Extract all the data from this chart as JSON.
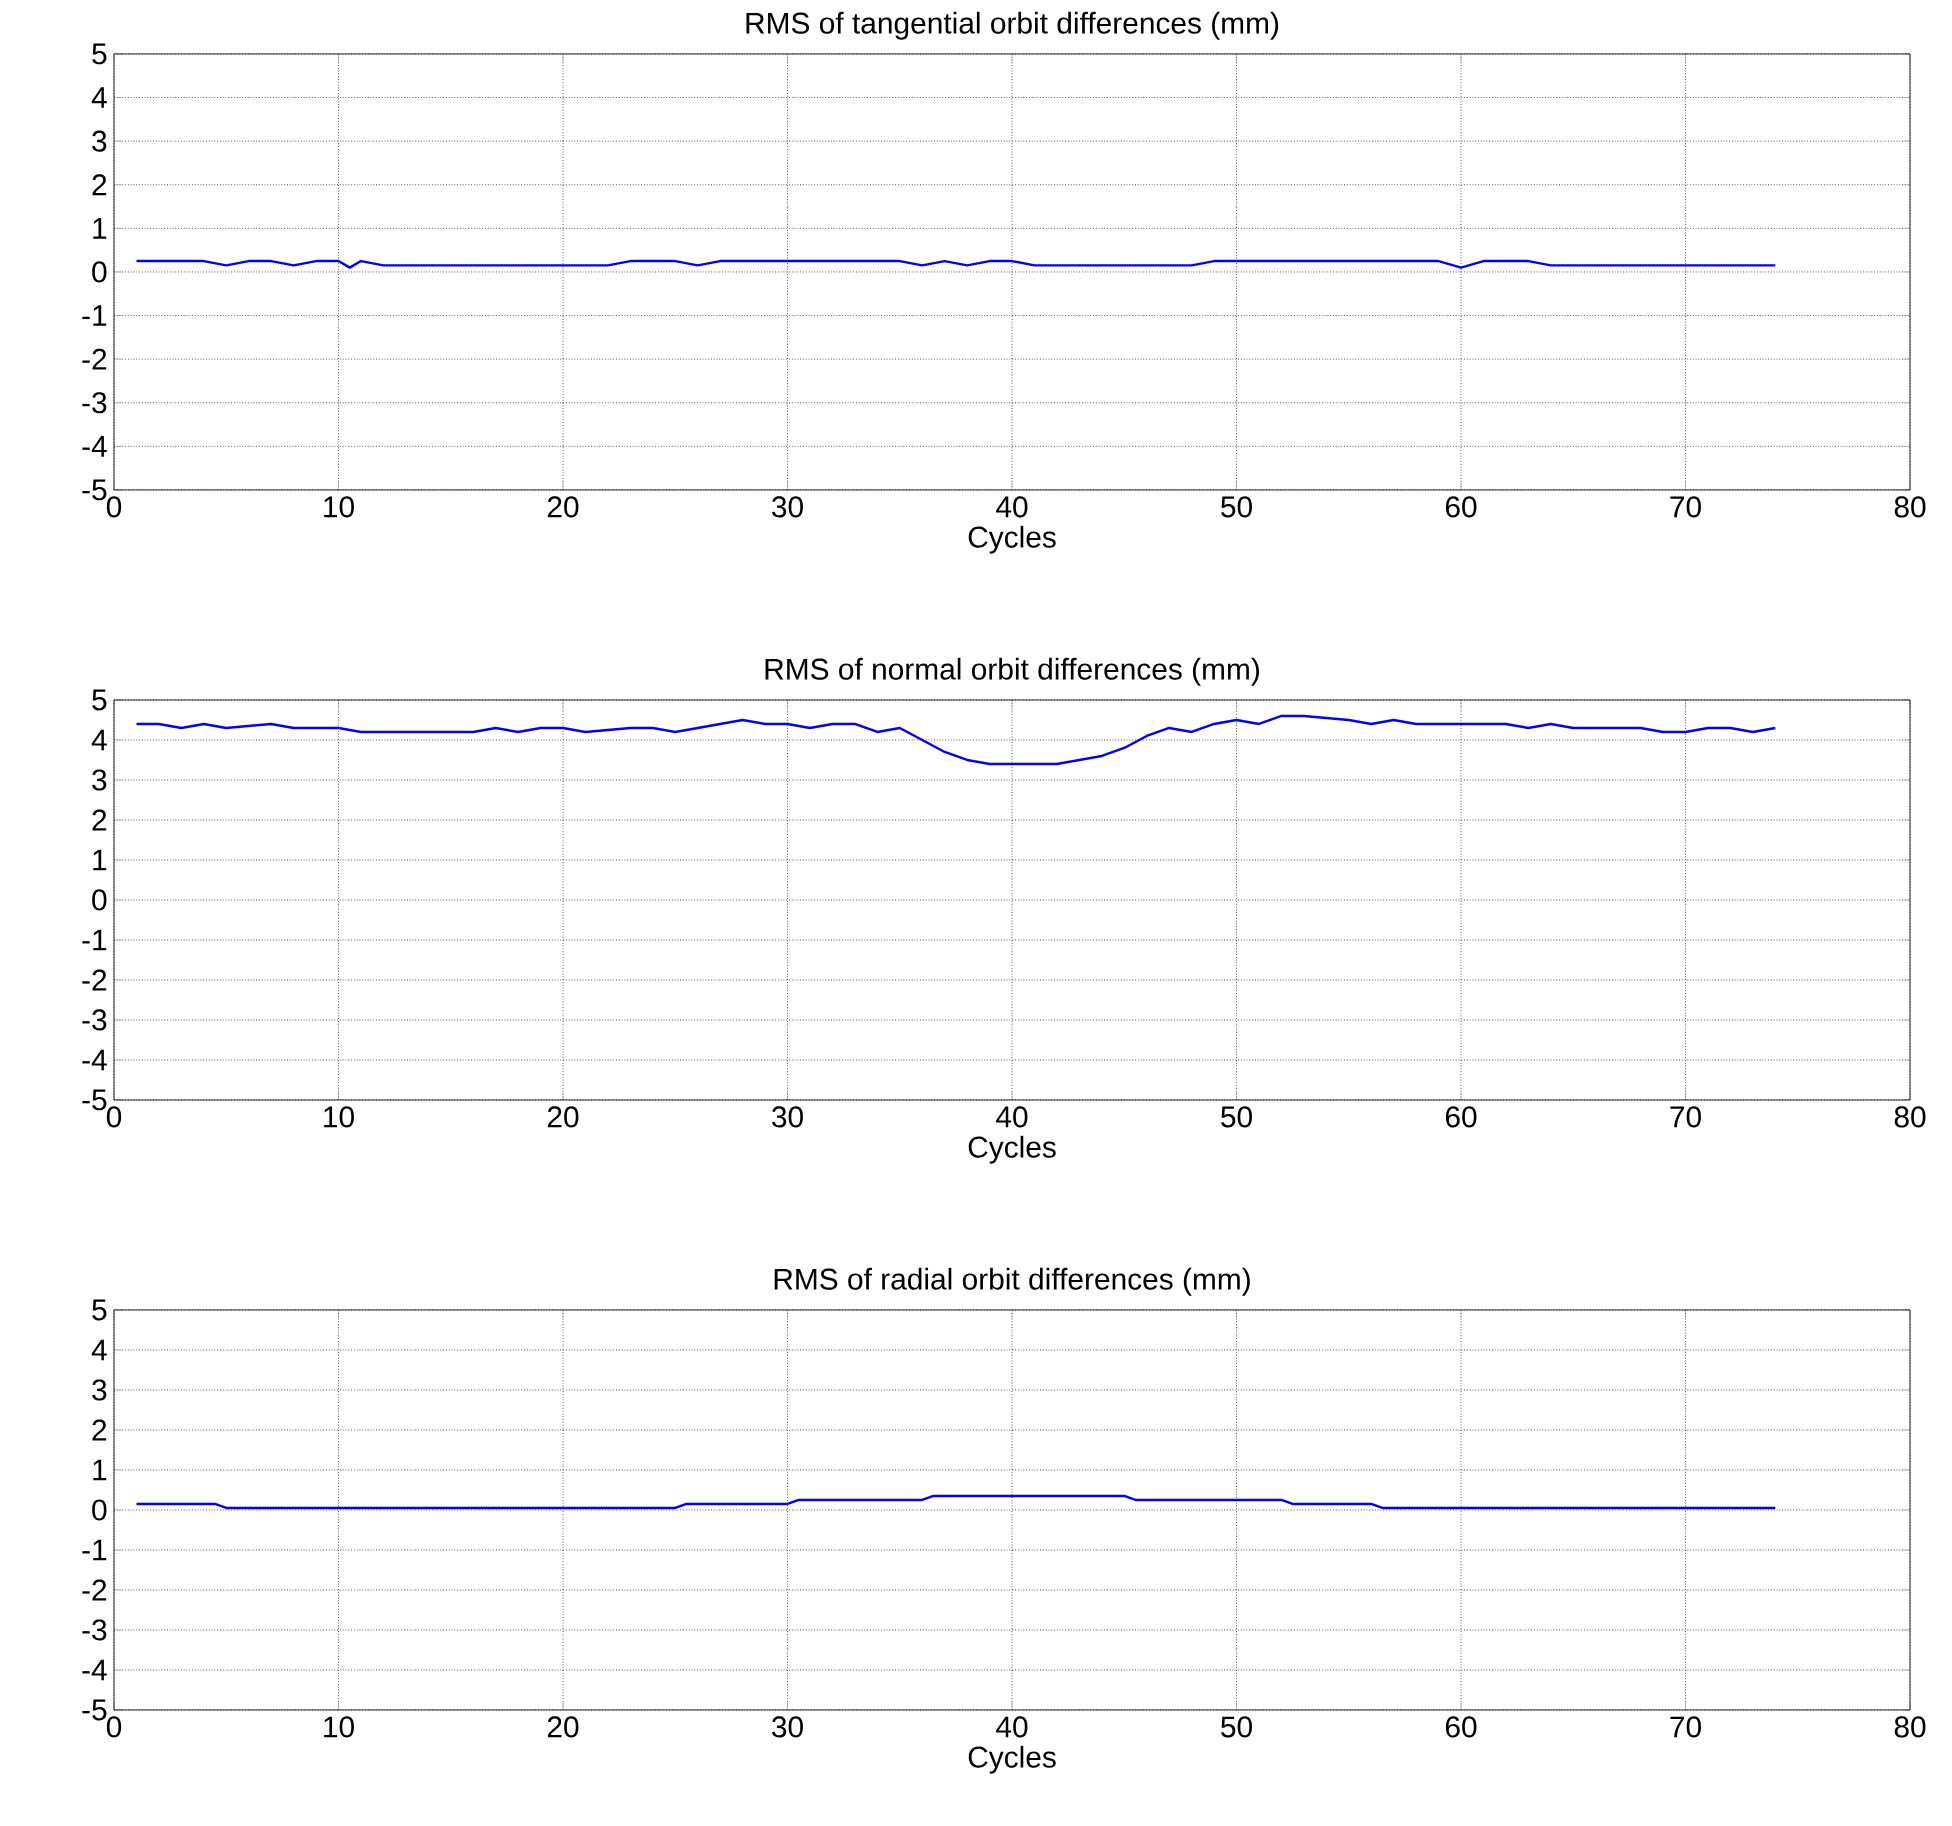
{
  "chart_data": [
    {
      "type": "line",
      "title": "RMS of tangential orbit differences (mm)",
      "xlabel": "Cycles",
      "xlim": [
        0,
        80
      ],
      "ylim": [
        -5,
        5
      ],
      "xticks": [
        0,
        10,
        20,
        30,
        40,
        50,
        60,
        70,
        80
      ],
      "yticks": [
        -5,
        -4,
        -3,
        -2,
        -1,
        0,
        1,
        2,
        3,
        4,
        5
      ],
      "grid": true,
      "series": [
        {
          "color": "#0000ff",
          "x": [
            1,
            4,
            5,
            6,
            7,
            8,
            9,
            10,
            10.5,
            11,
            12,
            22,
            23,
            25,
            26,
            27,
            35,
            36,
            37,
            38,
            39,
            40,
            41,
            48,
            49,
            59,
            60,
            61,
            63,
            64,
            74
          ],
          "values": [
            0.25,
            0.25,
            0.15,
            0.25,
            0.25,
            0.15,
            0.25,
            0.25,
            0.1,
            0.25,
            0.15,
            0.15,
            0.25,
            0.25,
            0.15,
            0.25,
            0.25,
            0.15,
            0.25,
            0.15,
            0.25,
            0.25,
            0.15,
            0.15,
            0.25,
            0.25,
            0.1,
            0.25,
            0.25,
            0.15,
            0.15
          ]
        }
      ]
    },
    {
      "type": "line",
      "title": "RMS of normal orbit differences (mm)",
      "xlabel": "Cycles",
      "xlim": [
        0,
        80
      ],
      "ylim": [
        -5,
        5
      ],
      "xticks": [
        0,
        10,
        20,
        30,
        40,
        50,
        60,
        70,
        80
      ],
      "yticks": [
        -5,
        -4,
        -3,
        -2,
        -1,
        0,
        1,
        2,
        3,
        4,
        5
      ],
      "grid": true,
      "series": [
        {
          "color": "#0000ff",
          "x": [
            1,
            2,
            3,
            4,
            5,
            7,
            8,
            10,
            11,
            16,
            17,
            18,
            19,
            20,
            21,
            23,
            24,
            25,
            26,
            28,
            29,
            30,
            31,
            32,
            33,
            34,
            35,
            36,
            37,
            38,
            39,
            40,
            42,
            43,
            44,
            45,
            46,
            47,
            48,
            49,
            50,
            51,
            52,
            53,
            55,
            56,
            57,
            58,
            62,
            63,
            64,
            65,
            68,
            69,
            70,
            71,
            72,
            73,
            74
          ],
          "values": [
            4.4,
            4.4,
            4.3,
            4.4,
            4.3,
            4.4,
            4.3,
            4.3,
            4.2,
            4.2,
            4.3,
            4.2,
            4.3,
            4.3,
            4.2,
            4.3,
            4.3,
            4.2,
            4.3,
            4.5,
            4.4,
            4.4,
            4.3,
            4.4,
            4.4,
            4.2,
            4.3,
            4.0,
            3.7,
            3.5,
            3.4,
            3.4,
            3.4,
            3.5,
            3.6,
            3.8,
            4.1,
            4.3,
            4.2,
            4.4,
            4.5,
            4.4,
            4.6,
            4.6,
            4.5,
            4.4,
            4.5,
            4.4,
            4.4,
            4.3,
            4.4,
            4.3,
            4.3,
            4.2,
            4.2,
            4.3,
            4.3,
            4.2,
            4.3
          ]
        }
      ]
    },
    {
      "type": "line",
      "title": "RMS of radial orbit differences (mm)",
      "xlabel": "Cycles",
      "xlim": [
        0,
        80
      ],
      "ylim": [
        -5,
        5
      ],
      "xticks": [
        0,
        10,
        20,
        30,
        40,
        50,
        60,
        70,
        80
      ],
      "yticks": [
        -5,
        -4,
        -3,
        -2,
        -1,
        0,
        1,
        2,
        3,
        4,
        5
      ],
      "grid": true,
      "series": [
        {
          "color": "#0000ff",
          "x": [
            1,
            4.5,
            5,
            25,
            25.5,
            30,
            30.5,
            36,
            36.5,
            45,
            45.5,
            52,
            52.5,
            56,
            56.5,
            74
          ],
          "values": [
            0.15,
            0.15,
            0.05,
            0.05,
            0.15,
            0.15,
            0.25,
            0.25,
            0.35,
            0.35,
            0.25,
            0.25,
            0.15,
            0.15,
            0.05,
            0.05
          ]
        }
      ]
    }
  ]
}
